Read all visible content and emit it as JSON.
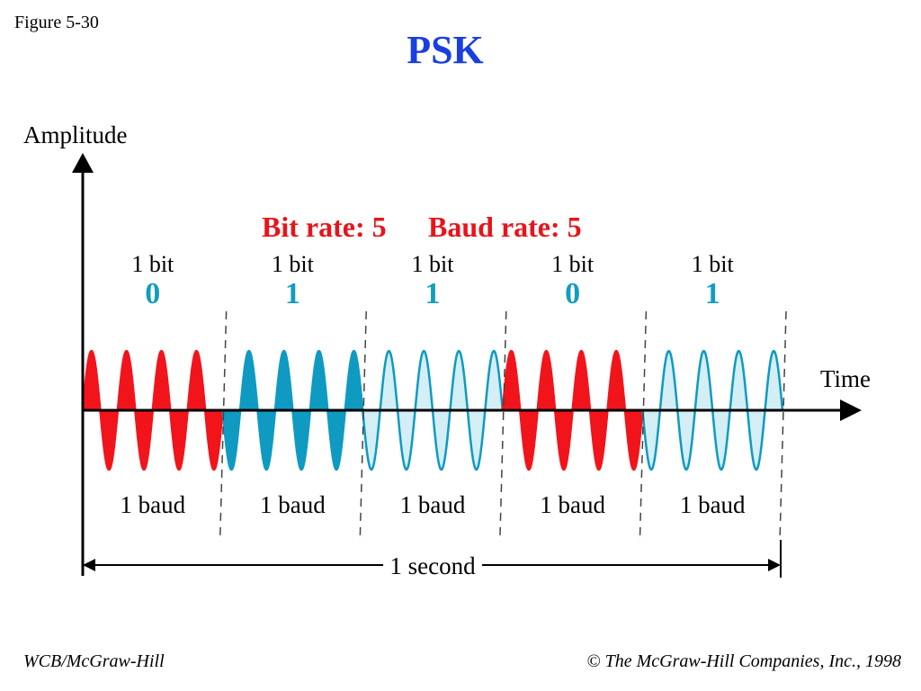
{
  "figure_label": "Figure 5-30",
  "title": "PSK",
  "y_axis_label": "Amplitude",
  "x_axis_label": "Time",
  "rates_heading": {
    "bit_rate": "Bit rate: 5",
    "baud_rate": "Baud rate: 5"
  },
  "segments": [
    {
      "bit_label": "1 bit",
      "bit_value": "0",
      "baud_label": "1 baud",
      "phase": "0",
      "fill": "solid-red"
    },
    {
      "bit_label": "1 bit",
      "bit_value": "1",
      "baud_label": "1 baud",
      "phase": "180",
      "fill": "solid-blue"
    },
    {
      "bit_label": "1 bit",
      "bit_value": "1",
      "baud_label": "1 baud",
      "phase": "180",
      "fill": "light-blue"
    },
    {
      "bit_label": "1 bit",
      "bit_value": "0",
      "baud_label": "1 baud",
      "phase": "0",
      "fill": "solid-red"
    },
    {
      "bit_label": "1 bit",
      "bit_value": "1",
      "baud_label": "1 baud",
      "phase": "180",
      "fill": "light-blue"
    }
  ],
  "cycles_per_segment": 4,
  "duration_label": "1 second",
  "footer": {
    "left": "WCB/McGraw-Hill",
    "right": "© The McGraw-Hill Companies, Inc., 1998"
  },
  "colors": {
    "title": "#1a3fe0",
    "rates": "#e8141b",
    "bit_value": "#129cc0",
    "red_wave": "#f2141b",
    "blue_wave": "#0f9ac2",
    "light_fill": "#d4eef6",
    "light_stroke": "#0f9ac2",
    "axis": "#000000"
  }
}
